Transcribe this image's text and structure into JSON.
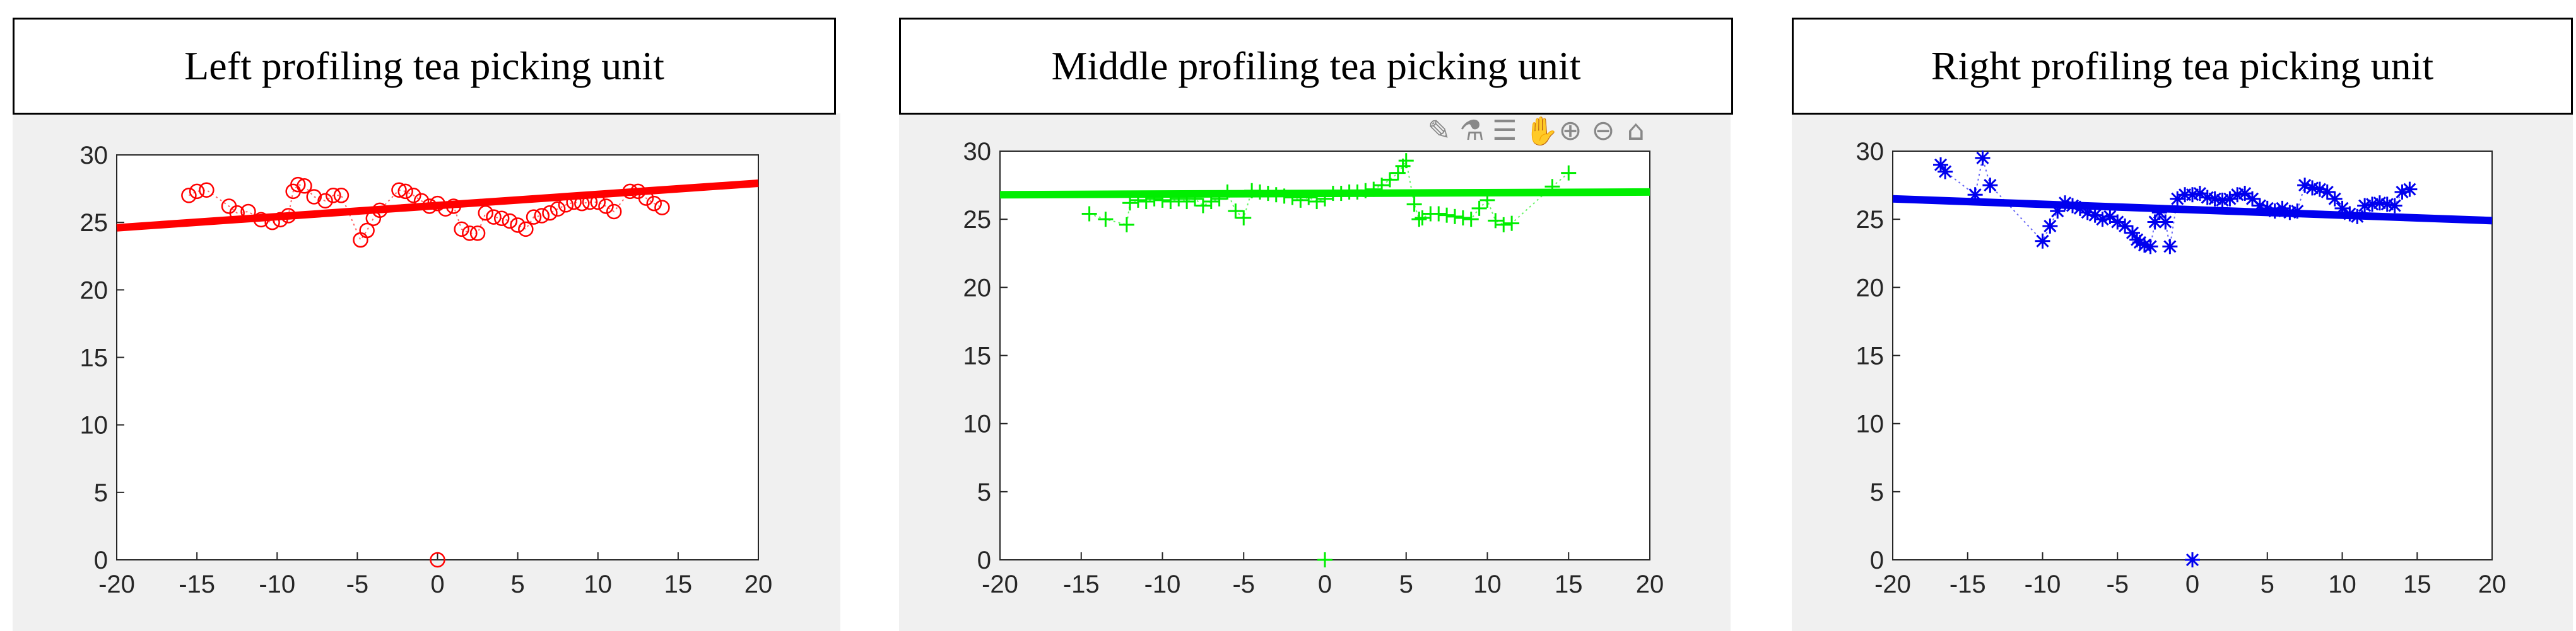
{
  "toolbar": {
    "icons": [
      "brush-icon",
      "data-tip-icon",
      "legend-icon",
      "pan-icon",
      "zoom-in-icon",
      "zoom-out-icon",
      "home-icon"
    ],
    "glyphs": [
      "✎",
      "⚗",
      "☰",
      "✋",
      "⊕",
      "⊖",
      "⌂"
    ]
  },
  "chart_data": [
    {
      "type": "scatter",
      "title": "Left profiling tea picking unit",
      "xlabel": "",
      "ylabel": "",
      "xlim": [
        -20,
        20
      ],
      "ylim": [
        0,
        30
      ],
      "xticks": [
        "-20",
        "-15",
        "-10",
        "-5",
        "0",
        "5",
        "10",
        "15",
        "20"
      ],
      "yticks": [
        "0",
        "5",
        "10",
        "15",
        "20",
        "25",
        "30"
      ],
      "grid": false,
      "marker": "circle",
      "color": "#ff0000",
      "fit_line": {
        "x": [
          -20,
          20
        ],
        "y": [
          24.6,
          27.9
        ]
      },
      "series": [
        {
          "x": [
            -15.5,
            -15.0,
            -14.4,
            -13.0,
            -12.5,
            -11.8,
            -11.0,
            -10.3,
            -9.8,
            -9.3,
            -9.0,
            -8.7,
            -8.3,
            -7.7,
            -7.0,
            -6.5,
            -6.0,
            -4.8,
            -4.4,
            -4.0,
            -3.6,
            -2.4,
            -2.0,
            -1.5,
            -1.0,
            -0.5,
            0.0,
            0.5,
            1.0,
            1.5,
            2.0,
            2.5,
            3.0,
            3.5,
            4.0,
            4.5,
            5.0,
            5.5,
            6.0,
            6.5,
            7.0,
            7.5,
            8.0,
            8.5,
            9.0,
            9.5,
            10.0,
            10.5,
            11.0,
            12.0,
            12.5,
            13.0,
            13.5,
            14.0,
            0.0
          ],
          "y": [
            27.0,
            27.3,
            27.4,
            26.2,
            25.7,
            25.8,
            25.2,
            25.0,
            25.2,
            25.5,
            27.3,
            27.8,
            27.7,
            26.9,
            26.6,
            27.0,
            27.0,
            23.7,
            24.4,
            25.3,
            25.9,
            27.4,
            27.3,
            27.0,
            26.6,
            26.2,
            26.4,
            26.0,
            26.2,
            24.5,
            24.2,
            24.2,
            25.7,
            25.4,
            25.3,
            25.1,
            24.8,
            24.5,
            25.4,
            25.5,
            25.7,
            26.0,
            26.3,
            26.5,
            26.4,
            26.5,
            26.5,
            26.2,
            25.8,
            27.3,
            27.3,
            26.8,
            26.4,
            26.1,
            0.0
          ]
        }
      ]
    },
    {
      "type": "scatter",
      "title": "Middle profiling tea picking unit",
      "xlabel": "",
      "ylabel": "",
      "xlim": [
        -20,
        20
      ],
      "ylim": [
        0,
        30
      ],
      "xticks": [
        "-20",
        "-15",
        "-10",
        "-5",
        "0",
        "5",
        "10",
        "15",
        "20"
      ],
      "yticks": [
        "0",
        "5",
        "10",
        "15",
        "20",
        "25",
        "30"
      ],
      "grid": false,
      "marker": "plus",
      "color": "#00ee00",
      "fit_line": {
        "x": [
          -20,
          20
        ],
        "y": [
          26.8,
          27.0
        ]
      },
      "series": [
        {
          "x": [
            -14.5,
            -13.5,
            -12.2,
            -12.0,
            -11.5,
            -11.0,
            -10.5,
            -10.0,
            -9.5,
            -9.0,
            -8.5,
            -8.0,
            -7.5,
            -7.0,
            -6.5,
            -6.0,
            -5.5,
            -5.0,
            -4.5,
            -4.0,
            -3.5,
            -3.0,
            -2.5,
            -2.0,
            -1.5,
            -1.0,
            -0.5,
            0.0,
            0.5,
            1.0,
            1.5,
            2.0,
            2.5,
            3.0,
            3.5,
            4.0,
            4.5,
            4.8,
            5.0,
            5.5,
            5.8,
            6.0,
            6.5,
            7.0,
            7.5,
            8.0,
            8.5,
            9.0,
            9.5,
            10.0,
            10.5,
            11.0,
            11.5,
            14.0,
            15.0,
            0.0
          ],
          "y": [
            25.4,
            25.0,
            24.6,
            26.2,
            26.4,
            26.3,
            26.5,
            26.4,
            26.3,
            26.5,
            26.3,
            26.5,
            26.0,
            26.3,
            26.5,
            27.0,
            25.6,
            25.1,
            27.1,
            27.0,
            26.9,
            26.8,
            26.7,
            26.6,
            26.4,
            26.6,
            26.3,
            26.5,
            26.9,
            26.9,
            27.0,
            27.0,
            27.1,
            27.2,
            27.5,
            27.9,
            28.4,
            28.9,
            29.3,
            26.1,
            25.0,
            25.1,
            25.4,
            25.4,
            25.3,
            25.2,
            25.1,
            25.0,
            25.8,
            26.4,
            24.9,
            24.6,
            24.7,
            27.4,
            28.4,
            0.0
          ]
        }
      ]
    },
    {
      "type": "scatter",
      "title": "Right profiling tea picking unit",
      "xlabel": "",
      "ylabel": "",
      "xlim": [
        -20,
        20
      ],
      "ylim": [
        0,
        30
      ],
      "xticks": [
        "-20",
        "-15",
        "-10",
        "-5",
        "0",
        "5",
        "10",
        "15",
        "20"
      ],
      "yticks": [
        "0",
        "5",
        "10",
        "15",
        "20",
        "25",
        "30"
      ],
      "grid": false,
      "marker": "asterisk",
      "color": "#0000ee",
      "fit_line": {
        "x": [
          -20,
          20
        ],
        "y": [
          26.5,
          24.9
        ]
      },
      "series": [
        {
          "x": [
            -16.8,
            -16.5,
            -14.5,
            -14.0,
            -13.5,
            -10.0,
            -9.5,
            -9.0,
            -8.5,
            -8.0,
            -7.5,
            -7.0,
            -6.5,
            -6.0,
            -5.5,
            -5.0,
            -4.5,
            -4.0,
            -3.7,
            -3.5,
            -3.2,
            -2.8,
            -2.5,
            -2.2,
            -1.8,
            -1.5,
            -1.0,
            -0.5,
            0.0,
            0.5,
            1.0,
            1.5,
            2.0,
            2.5,
            3.0,
            3.5,
            4.0,
            4.5,
            5.0,
            5.5,
            6.0,
            6.5,
            7.0,
            7.5,
            8.0,
            8.5,
            9.0,
            9.5,
            10.0,
            10.5,
            11.0,
            11.5,
            12.0,
            12.5,
            13.0,
            13.5,
            14.0,
            14.5,
            0.0
          ],
          "y": [
            29.0,
            28.5,
            26.8,
            29.5,
            27.5,
            23.4,
            24.5,
            25.6,
            26.2,
            26.0,
            25.8,
            25.5,
            25.3,
            25.0,
            25.2,
            24.8,
            24.5,
            24.0,
            23.5,
            23.3,
            23.1,
            23.0,
            24.8,
            25.5,
            24.8,
            23.0,
            26.5,
            26.8,
            26.8,
            26.9,
            26.6,
            26.5,
            26.4,
            26.5,
            26.8,
            26.9,
            26.5,
            26.0,
            25.8,
            25.6,
            25.8,
            25.5,
            25.6,
            27.5,
            27.3,
            27.2,
            27.0,
            26.5,
            25.8,
            25.4,
            25.2,
            26.0,
            26.1,
            26.2,
            26.1,
            26.0,
            27.0,
            27.2,
            0.0
          ]
        }
      ]
    }
  ]
}
